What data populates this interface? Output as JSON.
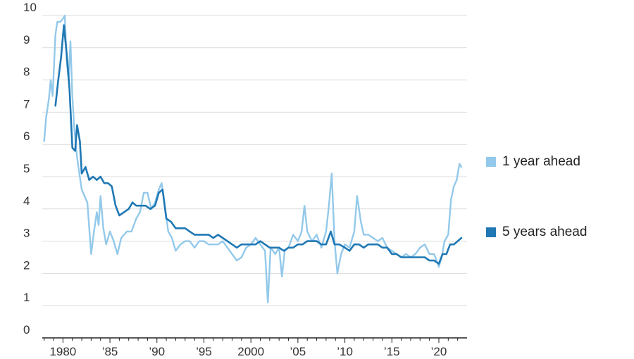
{
  "chart_data": {
    "type": "line",
    "title": "",
    "xlabel": "",
    "ylabel": "",
    "xlim": [
      1977.8,
      2023.0
    ],
    "ylim": [
      0,
      10
    ],
    "y_ticks": [
      "0",
      "1",
      "2",
      "3",
      "4",
      "5",
      "6",
      "7",
      "8",
      "9",
      "10"
    ],
    "x_ticks": [
      {
        "value": 1980,
        "label": "1980"
      },
      {
        "value": 1985,
        "label": "’85"
      },
      {
        "value": 1990,
        "label": "’90"
      },
      {
        "value": 1995,
        "label": "’95"
      },
      {
        "value": 2000,
        "label": "2000"
      },
      {
        "value": 2005,
        "label": "’05"
      },
      {
        "value": 2010,
        "label": "’10"
      },
      {
        "value": 2015,
        "label": "’15"
      },
      {
        "value": 2020,
        "label": "’20"
      }
    ],
    "grid": "horizontal",
    "legend_position": "right",
    "series": [
      {
        "name": "1 year ahead",
        "color": "#93c9ea",
        "points": [
          [
            1978.0,
            6.1
          ],
          [
            1978.2,
            6.8
          ],
          [
            1978.5,
            7.4
          ],
          [
            1978.7,
            8.0
          ],
          [
            1978.9,
            7.5
          ],
          [
            1979.2,
            9.4
          ],
          [
            1979.4,
            9.8
          ],
          [
            1979.7,
            9.8
          ],
          [
            1980.0,
            9.9
          ],
          [
            1980.2,
            10.0
          ],
          [
            1980.4,
            8.6
          ],
          [
            1980.6,
            8.0
          ],
          [
            1980.8,
            9.2
          ],
          [
            1981.0,
            7.5
          ],
          [
            1981.2,
            6.5
          ],
          [
            1981.5,
            5.6
          ],
          [
            1981.7,
            5.2
          ],
          [
            1982.0,
            4.6
          ],
          [
            1982.3,
            4.4
          ],
          [
            1982.6,
            4.2
          ],
          [
            1983.0,
            2.6
          ],
          [
            1983.3,
            3.3
          ],
          [
            1983.6,
            3.9
          ],
          [
            1983.8,
            3.5
          ],
          [
            1984.0,
            4.4
          ],
          [
            1984.3,
            3.4
          ],
          [
            1984.6,
            2.9
          ],
          [
            1985.0,
            3.3
          ],
          [
            1985.4,
            3.0
          ],
          [
            1985.8,
            2.6
          ],
          [
            1986.2,
            3.1
          ],
          [
            1986.8,
            3.3
          ],
          [
            1987.3,
            3.3
          ],
          [
            1987.8,
            3.7
          ],
          [
            1988.2,
            3.9
          ],
          [
            1988.6,
            4.5
          ],
          [
            1989.0,
            4.5
          ],
          [
            1989.4,
            4.0
          ],
          [
            1989.8,
            4.2
          ],
          [
            1990.2,
            4.6
          ],
          [
            1990.5,
            4.8
          ],
          [
            1990.8,
            4.2
          ],
          [
            1991.2,
            3.3
          ],
          [
            1991.6,
            3.1
          ],
          [
            1992.0,
            2.7
          ],
          [
            1992.5,
            2.9
          ],
          [
            1993.0,
            3.0
          ],
          [
            1993.5,
            3.0
          ],
          [
            1994.0,
            2.8
          ],
          [
            1994.5,
            3.0
          ],
          [
            1995.0,
            3.0
          ],
          [
            1995.5,
            2.9
          ],
          [
            1996.0,
            2.9
          ],
          [
            1996.5,
            2.9
          ],
          [
            1997.0,
            3.0
          ],
          [
            1997.5,
            2.8
          ],
          [
            1998.0,
            2.6
          ],
          [
            1998.5,
            2.4
          ],
          [
            1999.0,
            2.5
          ],
          [
            1999.5,
            2.8
          ],
          [
            2000.0,
            2.9
          ],
          [
            2000.5,
            3.1
          ],
          [
            2001.0,
            2.9
          ],
          [
            2001.5,
            2.7
          ],
          [
            2001.8,
            1.1
          ],
          [
            2002.1,
            2.8
          ],
          [
            2002.6,
            2.6
          ],
          [
            2003.0,
            2.8
          ],
          [
            2003.3,
            1.9
          ],
          [
            2003.6,
            2.7
          ],
          [
            2004.0,
            2.8
          ],
          [
            2004.5,
            3.2
          ],
          [
            2005.0,
            3.0
          ],
          [
            2005.4,
            3.3
          ],
          [
            2005.7,
            4.1
          ],
          [
            2006.0,
            3.3
          ],
          [
            2006.5,
            3.0
          ],
          [
            2007.0,
            3.2
          ],
          [
            2007.5,
            2.8
          ],
          [
            2008.0,
            3.3
          ],
          [
            2008.3,
            4.1
          ],
          [
            2008.6,
            5.1
          ],
          [
            2008.9,
            3.0
          ],
          [
            2009.2,
            2.0
          ],
          [
            2009.6,
            2.6
          ],
          [
            2010.0,
            2.9
          ],
          [
            2010.5,
            2.8
          ],
          [
            2011.0,
            3.3
          ],
          [
            2011.3,
            4.4
          ],
          [
            2011.7,
            3.6
          ],
          [
            2012.0,
            3.2
          ],
          [
            2012.5,
            3.2
          ],
          [
            2013.0,
            3.1
          ],
          [
            2013.5,
            3.0
          ],
          [
            2014.0,
            3.1
          ],
          [
            2014.5,
            2.8
          ],
          [
            2015.0,
            2.7
          ],
          [
            2015.5,
            2.6
          ],
          [
            2016.0,
            2.5
          ],
          [
            2016.5,
            2.6
          ],
          [
            2017.0,
            2.5
          ],
          [
            2017.5,
            2.6
          ],
          [
            2018.0,
            2.8
          ],
          [
            2018.5,
            2.9
          ],
          [
            2019.0,
            2.6
          ],
          [
            2019.5,
            2.6
          ],
          [
            2020.0,
            2.2
          ],
          [
            2020.3,
            2.5
          ],
          [
            2020.6,
            3.0
          ],
          [
            2021.0,
            3.2
          ],
          [
            2021.3,
            4.3
          ],
          [
            2021.6,
            4.7
          ],
          [
            2021.9,
            4.9
          ],
          [
            2022.2,
            5.4
          ],
          [
            2022.4,
            5.3
          ]
        ]
      },
      {
        "name": "5 years ahead",
        "color": "#1f78b4",
        "points": [
          [
            1979.2,
            7.2
          ],
          [
            1979.5,
            8.0
          ],
          [
            1979.8,
            8.7
          ],
          [
            1980.1,
            9.7
          ],
          [
            1980.4,
            8.8
          ],
          [
            1980.7,
            7.7
          ],
          [
            1981.0,
            5.9
          ],
          [
            1981.3,
            5.8
          ],
          [
            1981.5,
            6.6
          ],
          [
            1981.8,
            6.1
          ],
          [
            1982.0,
            5.1
          ],
          [
            1982.4,
            5.3
          ],
          [
            1982.8,
            4.9
          ],
          [
            1983.2,
            5.0
          ],
          [
            1983.6,
            4.9
          ],
          [
            1984.0,
            5.0
          ],
          [
            1984.4,
            4.8
          ],
          [
            1984.8,
            4.8
          ],
          [
            1985.2,
            4.7
          ],
          [
            1985.6,
            4.1
          ],
          [
            1986.0,
            3.8
          ],
          [
            1986.5,
            3.9
          ],
          [
            1987.0,
            4.0
          ],
          [
            1987.4,
            4.2
          ],
          [
            1987.8,
            4.1
          ],
          [
            1988.3,
            4.1
          ],
          [
            1988.8,
            4.1
          ],
          [
            1989.3,
            4.0
          ],
          [
            1989.8,
            4.1
          ],
          [
            1990.2,
            4.5
          ],
          [
            1990.6,
            4.6
          ],
          [
            1991.0,
            3.7
          ],
          [
            1991.5,
            3.6
          ],
          [
            1992.0,
            3.4
          ],
          [
            1992.5,
            3.4
          ],
          [
            1993.0,
            3.4
          ],
          [
            1993.5,
            3.3
          ],
          [
            1994.0,
            3.2
          ],
          [
            1994.5,
            3.2
          ],
          [
            1995.0,
            3.2
          ],
          [
            1995.5,
            3.2
          ],
          [
            1996.0,
            3.1
          ],
          [
            1996.5,
            3.2
          ],
          [
            1997.0,
            3.1
          ],
          [
            1997.5,
            3.0
          ],
          [
            1998.0,
            2.9
          ],
          [
            1998.5,
            2.8
          ],
          [
            1999.0,
            2.9
          ],
          [
            1999.5,
            2.9
          ],
          [
            2000.0,
            2.9
          ],
          [
            2000.5,
            2.9
          ],
          [
            2001.0,
            3.0
          ],
          [
            2001.5,
            2.9
          ],
          [
            2002.0,
            2.8
          ],
          [
            2002.5,
            2.8
          ],
          [
            2003.0,
            2.8
          ],
          [
            2003.5,
            2.7
          ],
          [
            2004.0,
            2.8
          ],
          [
            2004.5,
            2.8
          ],
          [
            2005.0,
            2.9
          ],
          [
            2005.5,
            2.9
          ],
          [
            2006.0,
            3.0
          ],
          [
            2006.5,
            3.0
          ],
          [
            2007.0,
            3.0
          ],
          [
            2007.5,
            2.9
          ],
          [
            2008.0,
            2.9
          ],
          [
            2008.5,
            3.3
          ],
          [
            2008.9,
            2.9
          ],
          [
            2009.4,
            2.9
          ],
          [
            2010.0,
            2.8
          ],
          [
            2010.5,
            2.7
          ],
          [
            2011.0,
            2.9
          ],
          [
            2011.5,
            2.9
          ],
          [
            2012.0,
            2.8
          ],
          [
            2012.5,
            2.9
          ],
          [
            2013.0,
            2.9
          ],
          [
            2013.5,
            2.9
          ],
          [
            2014.0,
            2.8
          ],
          [
            2014.5,
            2.8
          ],
          [
            2015.0,
            2.6
          ],
          [
            2015.5,
            2.6
          ],
          [
            2016.0,
            2.5
          ],
          [
            2016.5,
            2.5
          ],
          [
            2017.0,
            2.5
          ],
          [
            2017.5,
            2.5
          ],
          [
            2018.0,
            2.5
          ],
          [
            2018.5,
            2.5
          ],
          [
            2019.0,
            2.4
          ],
          [
            2019.5,
            2.4
          ],
          [
            2020.0,
            2.3
          ],
          [
            2020.4,
            2.6
          ],
          [
            2020.8,
            2.6
          ],
          [
            2021.2,
            2.9
          ],
          [
            2021.6,
            2.9
          ],
          [
            2022.0,
            3.0
          ],
          [
            2022.4,
            3.1
          ]
        ]
      }
    ]
  }
}
